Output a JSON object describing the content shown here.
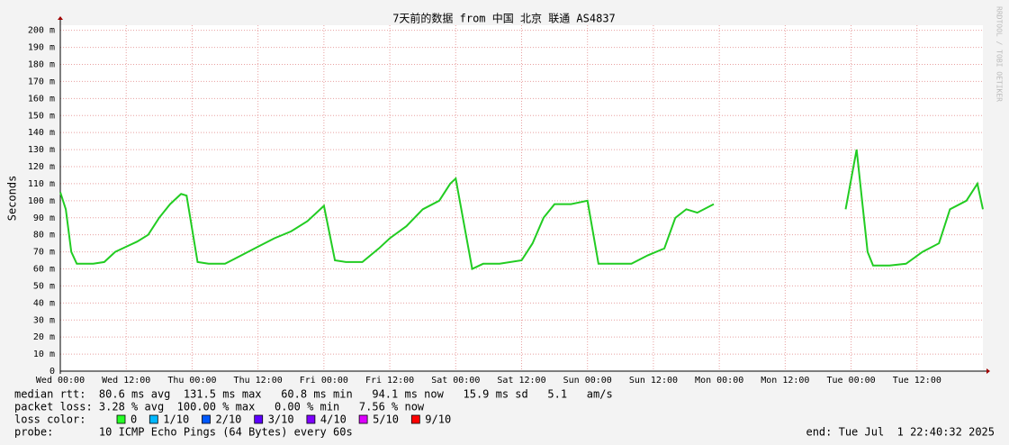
{
  "chart_data": {
    "type": "line",
    "title": "7天前的数据 from 中国 北京 联通 AS4837",
    "y_label": "Seconds",
    "side_label": "RRDTOOL / TOBI OETIKER",
    "xlim": [
      0,
      168
    ],
    "xticks": [
      {
        "value": 0,
        "label": "Wed 00:00"
      },
      {
        "value": 12,
        "label": "Wed 12:00"
      },
      {
        "value": 24,
        "label": "Thu 00:00"
      },
      {
        "value": 36,
        "label": "Thu 12:00"
      },
      {
        "value": 48,
        "label": "Fri 00:00"
      },
      {
        "value": 60,
        "label": "Fri 12:00"
      },
      {
        "value": 72,
        "label": "Sat 00:00"
      },
      {
        "value": 84,
        "label": "Sat 12:00"
      },
      {
        "value": 96,
        "label": "Sun 00:00"
      },
      {
        "value": 108,
        "label": "Sun 12:00"
      },
      {
        "value": 120,
        "label": "Mon 00:00"
      },
      {
        "value": 132,
        "label": "Mon 12:00"
      },
      {
        "value": 144,
        "label": "Tue 00:00"
      },
      {
        "value": 156,
        "label": "Tue 12:00"
      }
    ],
    "ylim": [
      0,
      203
    ],
    "yticks": [
      0,
      {
        "value": 10,
        "label": "10 m"
      },
      {
        "value": 20,
        "label": "20 m"
      },
      {
        "value": 30,
        "label": "30 m"
      },
      {
        "value": 40,
        "label": "40 m"
      },
      {
        "value": 50,
        "label": "50 m"
      },
      {
        "value": 60,
        "label": "60 m"
      },
      {
        "value": 70,
        "label": "70 m"
      },
      {
        "value": 80,
        "label": "80 m"
      },
      {
        "value": 90,
        "label": "90 m"
      },
      {
        "value": 100,
        "label": "100 m"
      },
      {
        "value": 110,
        "label": "110 m"
      },
      {
        "value": 120,
        "label": "120 m"
      },
      {
        "value": 130,
        "label": "130 m"
      },
      {
        "value": 140,
        "label": "140 m"
      },
      {
        "value": 150,
        "label": "150 m"
      },
      {
        "value": 160,
        "label": "160 m"
      },
      {
        "value": 170,
        "label": "170 m"
      },
      {
        "value": 180,
        "label": "180 m"
      },
      {
        "value": 190,
        "label": "190 m"
      },
      {
        "value": 200,
        "label": "200 m"
      }
    ],
    "grid": true,
    "x": [
      0,
      1,
      2,
      3,
      4,
      6,
      8,
      10,
      12,
      14,
      16,
      18,
      20,
      22,
      23,
      25,
      27,
      30,
      33,
      36,
      39,
      42,
      45,
      48,
      50,
      52,
      55,
      58,
      60,
      63,
      66,
      69,
      71,
      72,
      75,
      77,
      80,
      84,
      86,
      88,
      90,
      93,
      96,
      98,
      100,
      104,
      107,
      110,
      112,
      114,
      116,
      119,
      130,
      143,
      145,
      147,
      148,
      151,
      154,
      157,
      160,
      162,
      165,
      167,
      168
    ],
    "series": [
      {
        "name": "median rtt",
        "color": "#22cc22",
        "values": [
          105,
          95,
          70,
          63,
          63,
          63,
          64,
          70,
          73,
          76,
          80,
          90,
          98,
          104,
          103,
          64,
          63,
          63,
          68,
          73,
          78,
          82,
          88,
          97,
          65,
          64,
          64,
          72,
          78,
          85,
          95,
          100,
          110,
          113,
          60,
          63,
          63,
          65,
          75,
          90,
          98,
          98,
          100,
          63,
          63,
          63,
          68,
          72,
          90,
          95,
          93,
          98,
          null,
          95,
          130,
          70,
          62,
          62,
          63,
          70,
          75,
          95,
          100,
          110,
          95
        ]
      }
    ],
    "stats": [
      "median rtt:  80.6 ms avg  131.5 ms max   60.8 ms min   94.1 ms now   15.9 ms sd   5.1   am/s",
      "packet loss: 3.28 % avg  100.00 % max   0.00 % min   7.56 % now"
    ],
    "loss_title": "loss color:",
    "loss_legend": [
      {
        "label": "0",
        "color": "#26ff26"
      },
      {
        "label": "1/10",
        "color": "#00b8ff"
      },
      {
        "label": "2/10",
        "color": "#0059ff"
      },
      {
        "label": "3/10",
        "color": "#5e00ff"
      },
      {
        "label": "4/10",
        "color": "#7e00ff"
      },
      {
        "label": "5/10",
        "color": "#dd00ff"
      },
      {
        "label": "9/10",
        "color": "#ff0000"
      }
    ],
    "probe": "probe:       10 ICMP Echo Pings (64 Bytes) every 60s",
    "end": "end: Tue Jul  1 22:40:32 2025"
  }
}
